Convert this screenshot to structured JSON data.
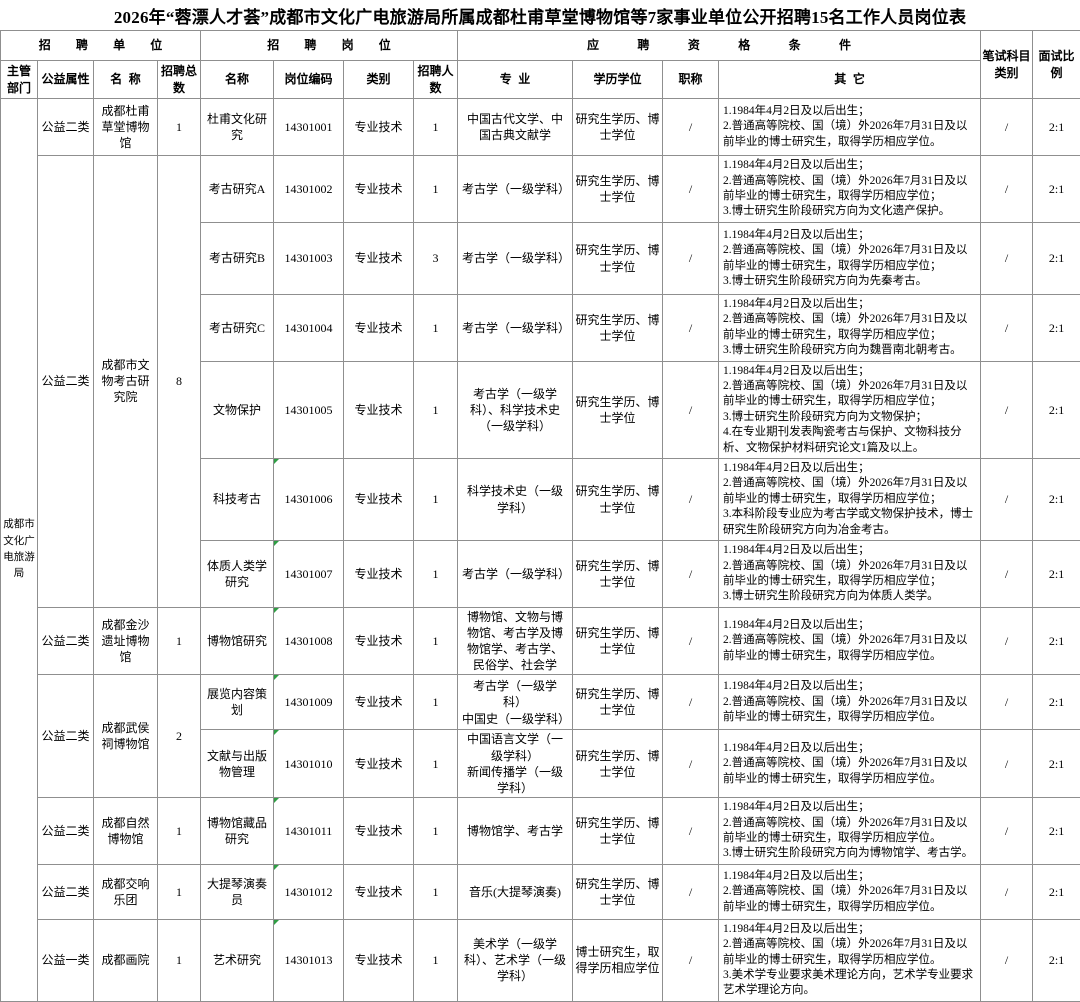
{
  "title": "2026年“蓉漂人才荟”成都市文化广电旅游局所属成都杜甫草堂博物馆等7家事业单位公开招聘15名工作人员岗位表",
  "department": "成都市文化广电旅游局",
  "colors": {
    "text": "#000000",
    "border": "#8f8f8f",
    "background": "#ffffff",
    "corner_marker_green": "#2f9e44"
  },
  "headers": {
    "group_recruit_unit": "招聘单位",
    "group_recruit_position": "招聘岗位",
    "group_qualification": "应聘资格条件",
    "written_exam": "笔试科目类别",
    "interview_ratio": "面试比例",
    "dept": "主管部门",
    "welfare_category": "公益属性",
    "unit_name": "名称",
    "unit_total": "招聘总数",
    "position_name": "名称",
    "position_code": "岗位编码",
    "position_type": "类别",
    "headcount": "招聘人数",
    "major": "专业",
    "degree": "学历学位",
    "prof_title": "职称",
    "other": "其它"
  },
  "rows": [
    {
      "category": "公益二类",
      "unit_name": "成都杜甫草堂博物馆",
      "unit_total": "1",
      "position_name": "杜甫文化研究",
      "code": "14301001",
      "type": "专业技术",
      "count": "1",
      "major": "中国古代文学、中国古典文献学",
      "degree": "研究生学历、博士学位",
      "prof_title": "/",
      "other": "1.1984年4月2日及以后出生；\n2.普通高等院校、国（境）外2026年7月31日及以前毕业的博士研究生，取得学历相应学位。",
      "written": "/",
      "ratio": "2:1",
      "corner_marker": false
    },
    {
      "category": "公益二类",
      "unit_name": "成都市文物考古研究院",
      "unit_total": "8",
      "position_name": "考古研究A",
      "code": "14301002",
      "type": "专业技术",
      "count": "1",
      "major": "考古学（一级学科）",
      "degree": "研究生学历、博士学位",
      "prof_title": "/",
      "other": "1.1984年4月2日及以后出生；\n2.普通高等院校、国（境）外2026年7月31日及以前毕业的博士研究生，取得学历相应学位；\n3.博士研究生阶段研究方向为文化遗产保护。",
      "written": "/",
      "ratio": "2:1",
      "corner_marker": false
    },
    {
      "position_name": "考古研究B",
      "code": "14301003",
      "type": "专业技术",
      "count": "3",
      "major": "考古学（一级学科）",
      "degree": "研究生学历、博士学位",
      "prof_title": "/",
      "other": "1.1984年4月2日及以后出生；\n2.普通高等院校、国（境）外2026年7月31日及以前毕业的博士研究生，取得学历相应学位；\n3.博士研究生阶段研究方向为先秦考古。",
      "written": "/",
      "ratio": "2:1",
      "corner_marker": false
    },
    {
      "position_name": "考古研究C",
      "code": "14301004",
      "type": "专业技术",
      "count": "1",
      "major": "考古学（一级学科）",
      "degree": "研究生学历、博士学位",
      "prof_title": "/",
      "other": "1.1984年4月2日及以后出生；\n2.普通高等院校、国（境）外2026年7月31日及以前毕业的博士研究生，取得学历相应学位；\n3.博士研究生阶段研究方向为魏晋南北朝考古。",
      "written": "/",
      "ratio": "2:1",
      "corner_marker": false
    },
    {
      "position_name": "文物保护",
      "code": "14301005",
      "type": "专业技术",
      "count": "1",
      "major": "考古学（一级学科）、科学技术史（一级学科）",
      "degree": "研究生学历、博士学位",
      "prof_title": "/",
      "other": "1.1984年4月2日及以后出生；\n2.普通高等院校、国（境）外2026年7月31日及以前毕业的博士研究生，取得学历相应学位；\n3.博士研究生阶段研究方向为文物保护；\n4.在专业期刊发表陶瓷考古与保护、文物科技分析、文物保护材料研究论文1篇及以上。",
      "written": "/",
      "ratio": "2:1",
      "corner_marker": false
    },
    {
      "position_name": "科技考古",
      "code": "14301006",
      "type": "专业技术",
      "count": "1",
      "major": "科学技术史（一级学科）",
      "degree": "研究生学历、博士学位",
      "prof_title": "/",
      "other": "1.1984年4月2日及以后出生；\n2.普通高等院校、国（境）外2026年7月31日及以前毕业的博士研究生，取得学历相应学位；\n3.本科阶段专业应为考古学或文物保护技术，博士研究生阶段研究方向为冶金考古。",
      "written": "/",
      "ratio": "2:1",
      "corner_marker": true
    },
    {
      "position_name": "体质人类学研究",
      "code": "14301007",
      "type": "专业技术",
      "count": "1",
      "major": "考古学（一级学科）",
      "degree": "研究生学历、博士学位",
      "prof_title": "/",
      "other": "1.1984年4月2日及以后出生；\n2.普通高等院校、国（境）外2026年7月31日及以前毕业的博士研究生，取得学历相应学位；\n3.博士研究生阶段研究方向为体质人类学。",
      "written": "/",
      "ratio": "2:1",
      "corner_marker": true
    },
    {
      "category": "公益二类",
      "unit_name": "成都金沙遗址博物馆",
      "unit_total": "1",
      "position_name": "博物馆研究",
      "code": "14301008",
      "type": "专业技术",
      "count": "1",
      "major": "博物馆、文物与博物馆、考古学及博物馆学、考古学、民俗学、社会学",
      "degree": "研究生学历、博士学位",
      "prof_title": "/",
      "other": "1.1984年4月2日及以后出生；\n2.普通高等院校、国（境）外2026年7月31日及以前毕业的博士研究生，取得学历相应学位。",
      "written": "/",
      "ratio": "2:1",
      "corner_marker": true
    },
    {
      "category": "公益二类",
      "unit_name": "成都武侯祠博物馆",
      "unit_total": "2",
      "position_name": "展览内容策划",
      "code": "14301009",
      "type": "专业技术",
      "count": "1",
      "major": "考古学（一级学科）\n中国史（一级学科）",
      "degree": "研究生学历、博士学位",
      "prof_title": "/",
      "other": "1.1984年4月2日及以后出生；\n2.普通高等院校、国（境）外2026年7月31日及以前毕业的博士研究生，取得学历相应学位。",
      "written": "/",
      "ratio": "2:1",
      "corner_marker": true
    },
    {
      "position_name": "文献与出版物管理",
      "code": "14301010",
      "type": "专业技术",
      "count": "1",
      "major": "中国语言文学（一级学科）\n新闻传播学（一级学科）",
      "degree": "研究生学历、博士学位",
      "prof_title": "/",
      "other": "1.1984年4月2日及以后出生；\n2.普通高等院校、国（境）外2026年7月31日及以前毕业的博士研究生，取得学历相应学位。",
      "written": "/",
      "ratio": "2:1",
      "corner_marker": true
    },
    {
      "category": "公益二类",
      "unit_name": "成都自然博物馆",
      "unit_total": "1",
      "position_name": "博物馆藏品研究",
      "code": "14301011",
      "type": "专业技术",
      "count": "1",
      "major": "博物馆学、考古学",
      "degree": "研究生学历、博士学位",
      "prof_title": "/",
      "other": "1.1984年4月2日及以后出生；\n2.普通高等院校、国（境）外2026年7月31日及以前毕业的博士研究生，取得学历相应学位。\n3.博士研究生阶段研究方向为博物馆学、考古学。",
      "written": "/",
      "ratio": "2:1",
      "corner_marker": true
    },
    {
      "category": "公益二类",
      "unit_name": "成都交响乐团",
      "unit_total": "1",
      "position_name": "大提琴演奏员",
      "code": "14301012",
      "type": "专业技术",
      "count": "1",
      "major": "音乐(大提琴演奏)",
      "degree": "研究生学历、博士学位",
      "prof_title": "/",
      "other": "1.1984年4月2日及以后出生；\n2.普通高等院校、国（境）外2026年7月31日及以前毕业的博士研究生，取得学历相应学位。",
      "written": "/",
      "ratio": "2:1",
      "corner_marker": true
    },
    {
      "category": "公益一类",
      "unit_name": "成都画院",
      "unit_total": "1",
      "position_name": "艺术研究",
      "code": "14301013",
      "type": "专业技术",
      "count": "1",
      "major": "美术学（一级学科）、艺术学（一级学科）",
      "degree": "博士研究生，取得学历相应学位",
      "prof_title": "/",
      "other": "1.1984年4月2日及以后出生；\n2.普通高等院校、国（境）外2026年7月31日及以前毕业的博士研究生，取得学历相应学位。\n3.美术学专业要求美术理论方向，艺术学专业要求艺术学理论方向。",
      "written": "/",
      "ratio": "2:1",
      "corner_marker": true
    }
  ]
}
